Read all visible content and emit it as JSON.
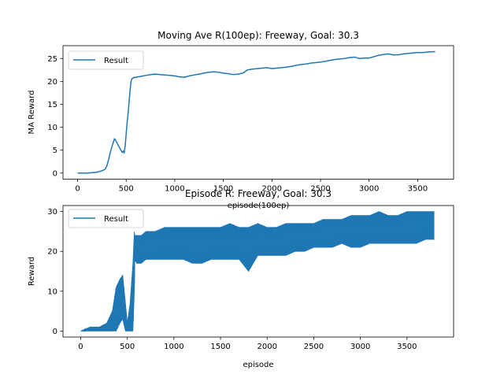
{
  "chart_data": [
    {
      "type": "line",
      "title": "Moving Ave R(100ep): Freeway, Goal: 30.3",
      "xlabel": "episode(100ep)",
      "ylabel": "MA Reward",
      "xlim": [
        -150,
        3870
      ],
      "ylim": [
        -1.33,
        27.8
      ],
      "xticks": [
        0,
        500,
        1000,
        1500,
        2000,
        2500,
        3000,
        3500
      ],
      "yticks": [
        0,
        5,
        10,
        15,
        20,
        25
      ],
      "grid": false,
      "legend_position": "top-left",
      "color": "#1f77b4",
      "series": [
        {
          "name": "Result",
          "x": [
            0,
            100,
            150,
            200,
            250,
            280,
            300,
            320,
            340,
            360,
            380,
            390,
            400,
            420,
            440,
            460,
            470,
            480,
            490,
            500,
            510,
            520,
            530,
            540,
            550,
            560,
            570,
            580,
            590,
            600,
            650,
            700,
            750,
            800,
            850,
            900,
            950,
            1000,
            1050,
            1100,
            1150,
            1200,
            1250,
            1300,
            1350,
            1400,
            1450,
            1500,
            1550,
            1600,
            1650,
            1700,
            1750,
            1800,
            1850,
            1900,
            1950,
            2000,
            2050,
            2100,
            2150,
            2200,
            2250,
            2300,
            2350,
            2400,
            2450,
            2500,
            2550,
            2600,
            2650,
            2700,
            2750,
            2800,
            2850,
            2900,
            2950,
            3000,
            3050,
            3100,
            3150,
            3200,
            3250,
            3300,
            3350,
            3400,
            3450,
            3500,
            3550,
            3600,
            3650,
            3680
          ],
          "values": [
            0,
            0,
            0.1,
            0.2,
            0.5,
            0.8,
            1.5,
            3.0,
            4.8,
            6.2,
            7.5,
            7.2,
            6.8,
            6.0,
            5.2,
            4.5,
            4.8,
            4.4,
            6.0,
            8.5,
            11.0,
            13.0,
            15.5,
            18.0,
            20.0,
            20.6,
            20.7,
            20.9,
            20.8,
            20.9,
            21.1,
            21.3,
            21.5,
            21.6,
            21.5,
            21.4,
            21.3,
            21.2,
            21.0,
            20.9,
            21.2,
            21.4,
            21.6,
            21.8,
            22.0,
            22.1,
            22.0,
            21.8,
            21.7,
            21.5,
            21.6,
            21.8,
            22.5,
            22.7,
            22.8,
            22.9,
            23.0,
            22.8,
            22.9,
            23.0,
            23.1,
            23.3,
            23.5,
            23.7,
            23.8,
            24.0,
            24.1,
            24.2,
            24.4,
            24.6,
            24.8,
            24.9,
            25.0,
            25.2,
            25.3,
            25.0,
            25.1,
            25.1,
            25.4,
            25.7,
            25.9,
            26.0,
            25.8,
            25.8,
            26.0,
            26.1,
            26.2,
            26.3,
            26.3,
            26.4,
            26.5,
            26.5
          ]
        }
      ]
    },
    {
      "type": "line",
      "title": "Episode R: Freeway, Goal: 30.3",
      "xlabel": "episode",
      "ylabel": "Reward",
      "xlim": [
        -190,
        4000
      ],
      "ylim": [
        -1.5,
        31.5
      ],
      "xticks": [
        0,
        500,
        1000,
        1500,
        2000,
        2500,
        3000,
        3500
      ],
      "yticks": [
        0,
        10,
        20,
        30
      ],
      "grid": false,
      "legend_position": "top-left",
      "color": "#1f77b4",
      "series": [
        {
          "name": "Result",
          "x": [
            0,
            100,
            200,
            280,
            340,
            380,
            420,
            450,
            480,
            500,
            530,
            560,
            575,
            580,
            600,
            650,
            700,
            800,
            900,
            1000,
            1100,
            1200,
            1300,
            1400,
            1500,
            1600,
            1700,
            1800,
            1900,
            2000,
            2100,
            2200,
            2300,
            2400,
            2500,
            2600,
            2700,
            2800,
            2900,
            3000,
            3100,
            3200,
            3300,
            3400,
            3500,
            3600,
            3700,
            3790
          ],
          "low": [
            0,
            0,
            0,
            0,
            0,
            0,
            2,
            3,
            0,
            0,
            0,
            0,
            10,
            18,
            17,
            17,
            18,
            18,
            18,
            18,
            18,
            17,
            17,
            18,
            18,
            18,
            18,
            15,
            19,
            19,
            19,
            19,
            20,
            20,
            21,
            21,
            21,
            22,
            21,
            21,
            22,
            22,
            22,
            22,
            22,
            22,
            23,
            23
          ],
          "high": [
            0,
            1,
            1,
            2,
            5,
            11,
            13,
            14,
            7,
            2,
            7,
            17,
            25,
            24,
            24,
            24,
            25,
            25,
            26,
            26,
            26,
            26,
            26,
            26,
            26,
            27,
            26,
            26,
            27,
            26,
            26,
            27,
            27,
            27,
            27,
            28,
            28,
            28,
            29,
            29,
            29,
            30,
            29,
            29,
            30,
            30,
            30,
            30
          ]
        }
      ]
    }
  ]
}
